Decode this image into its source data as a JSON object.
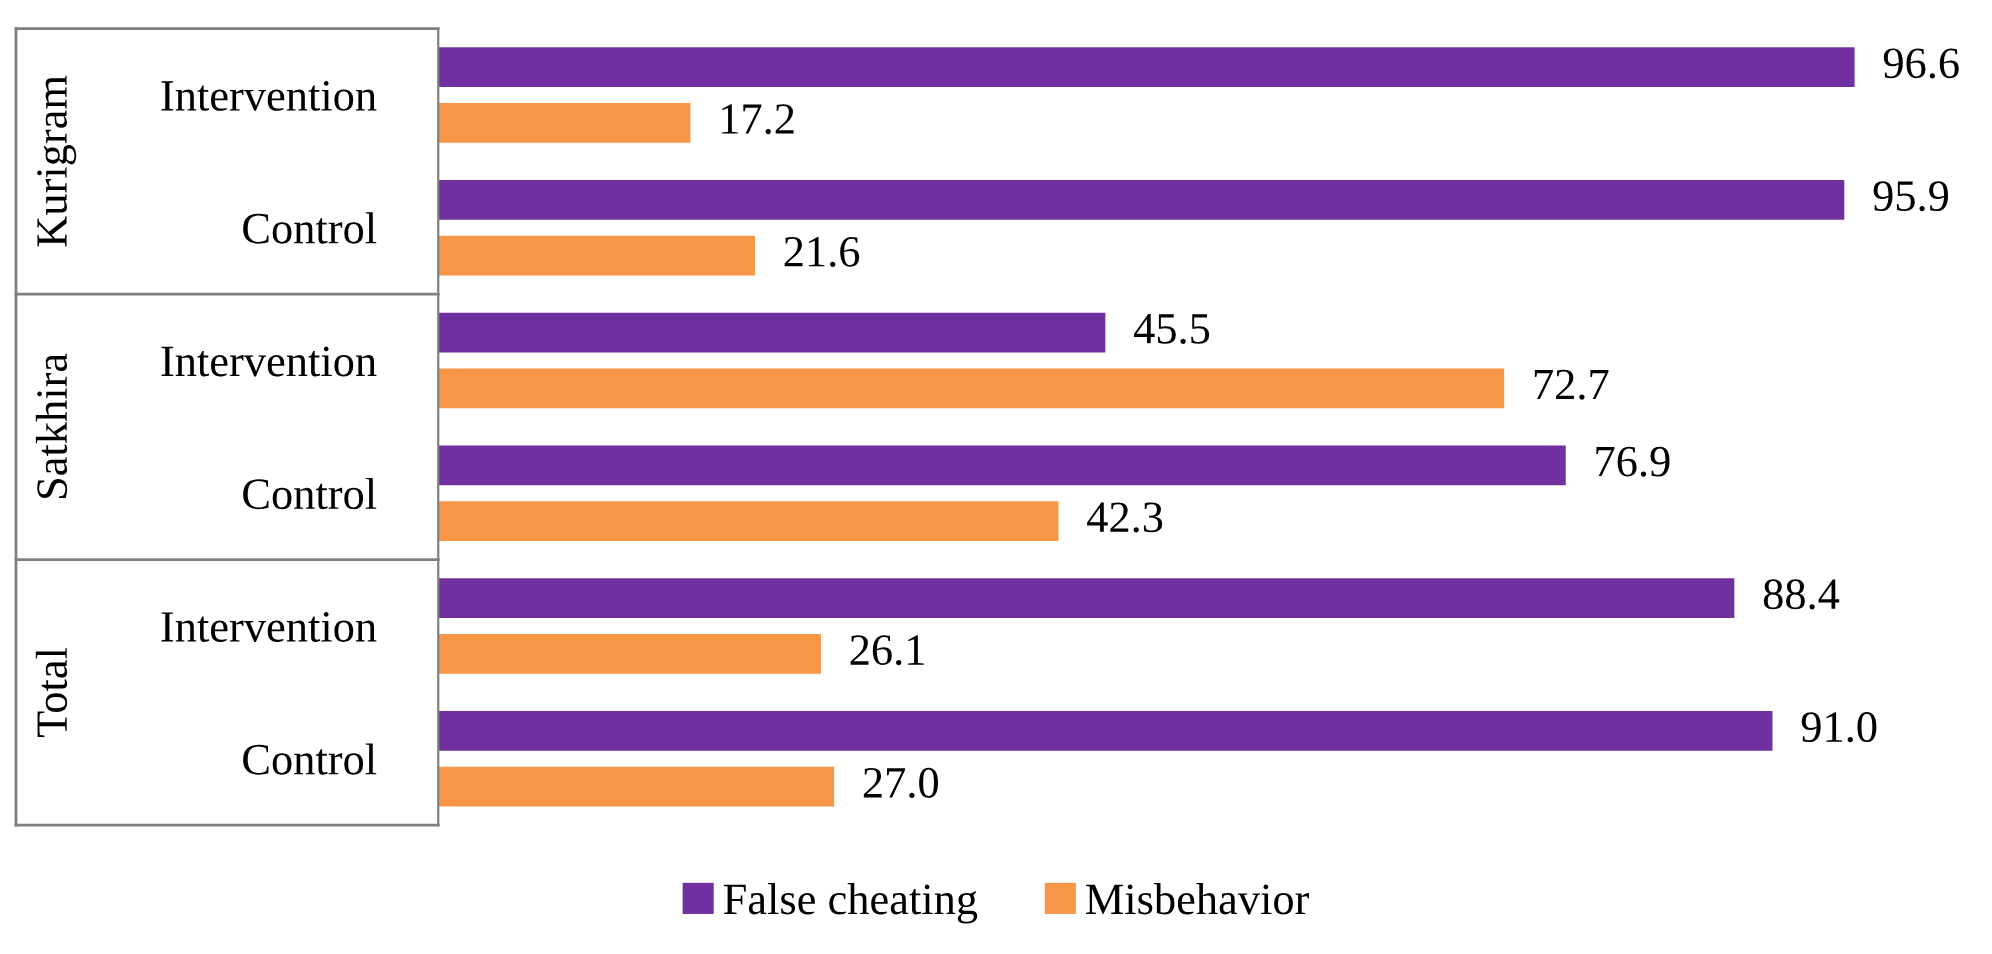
{
  "chart_data": {
    "type": "bar",
    "orientation": "horizontal",
    "legend": "bottom",
    "grid": false,
    "categories": [
      "Intervention",
      "Control",
      "Intervention",
      "Control",
      "Intervention",
      "Control"
    ],
    "annotations": [
      "Kurigram",
      "Satkhira",
      "Total"
    ],
    "series": [
      {
        "name": "False cheating",
        "color": "#7030a0",
        "values": [
          96.6,
          95.9,
          45.5,
          76.9,
          88.4,
          91.0
        ],
        "value_labels": [
          "96.6",
          "95.9",
          "45.5",
          "76.9",
          "88.4",
          "91.0"
        ]
      },
      {
        "name": "Misbehavior",
        "color": "#f79646",
        "values": [
          17.2,
          21.6,
          72.7,
          42.3,
          26.1,
          27.0
        ],
        "value_labels": [
          "17.2",
          "21.6",
          "72.7",
          "42.3",
          "26.1",
          "27.0"
        ]
      }
    ]
  }
}
